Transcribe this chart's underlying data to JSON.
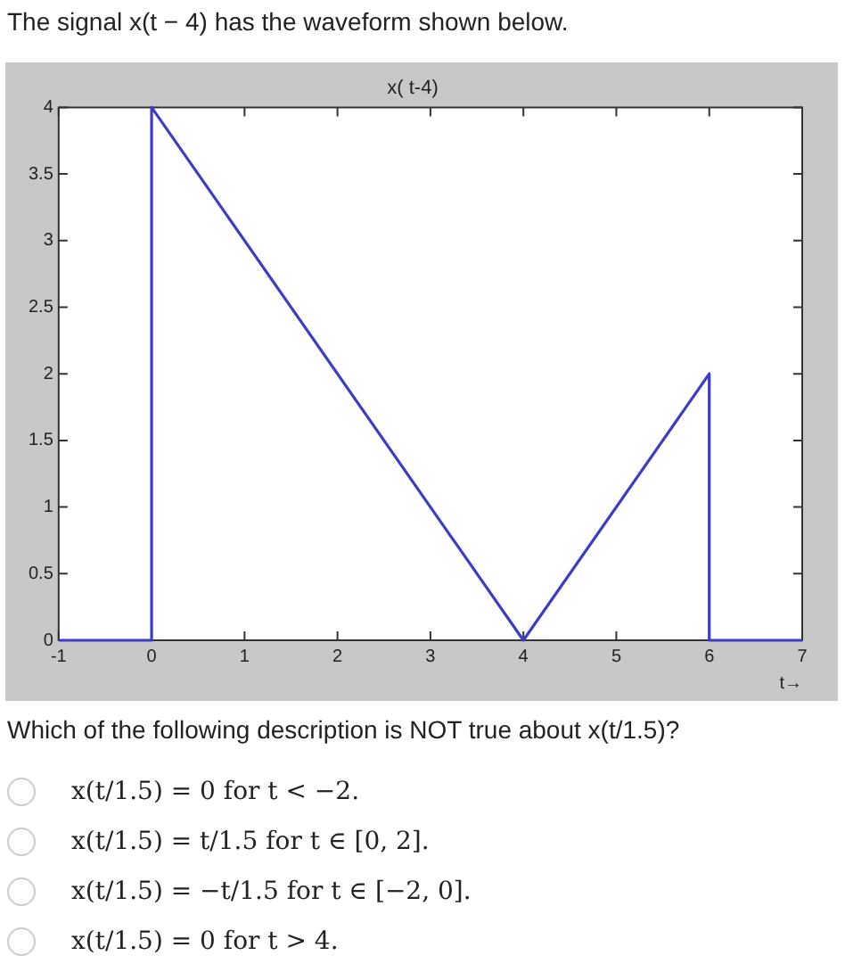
{
  "chart_data": {
    "type": "line",
    "title": "x( t-4)",
    "xlabel": "t→",
    "x": [
      -1,
      0,
      0,
      4,
      6,
      6,
      7
    ],
    "series": [
      {
        "color": "#3c3cc8",
        "values": [
          0,
          0,
          4,
          0,
          2,
          0,
          0
        ]
      }
    ],
    "xlim": [
      -1,
      7
    ],
    "xticks": [
      -1,
      0,
      1,
      2,
      3,
      4,
      5,
      6,
      7
    ],
    "ylim": [
      0,
      4
    ],
    "yticks": [
      0,
      0.5,
      1,
      1.5,
      2,
      2.5,
      3,
      3.5,
      4
    ],
    "grid": false,
    "legend": false,
    "marker": "none",
    "line_style": "solid",
    "annotations": [
      "The signal x(t − 4) has the waveform shown below.",
      "Which of the following description is NOT true about x(t/1.5)?",
      "x(t/1.5) = 0 for t < −2.",
      "x(t/1.5) = t/1.5 for t ∈ [0, 2].",
      "x(t/1.5) = −t/1.5 for t ∈ [−2, 0].",
      "x(t/1.5) = 0 for t > 4."
    ]
  }
}
